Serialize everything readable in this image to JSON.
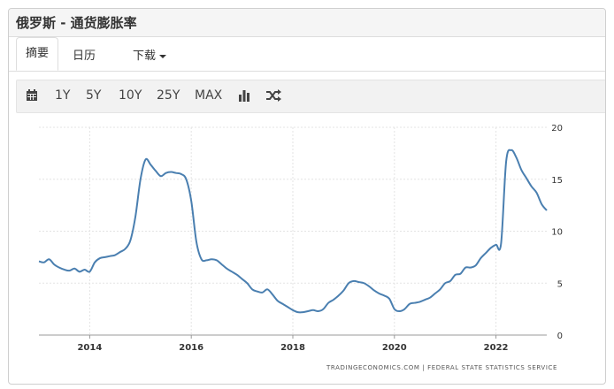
{
  "header": {
    "title": "俄罗斯 - 通货膨胀率"
  },
  "tabs": [
    {
      "label": "摘要",
      "active": true
    },
    {
      "label": "日历",
      "active": false
    },
    {
      "label": "下载",
      "dropdown": true
    }
  ],
  "toolbar": {
    "calendar_icon": "calendar-icon",
    "ranges": [
      "1Y",
      "5Y",
      "10Y",
      "25Y",
      "MAX"
    ],
    "chart_type_icon": "bar-chart-icon",
    "compare_icon": "shuffle-icon"
  },
  "chart_data": {
    "type": "line",
    "x_ticks": [
      "2014",
      "2016",
      "2018",
      "2020",
      "2022"
    ],
    "y_ticks": [
      "0",
      "5",
      "10",
      "15",
      "20"
    ],
    "ylim": [
      0,
      20
    ],
    "xlim": [
      2013.0,
      2023.0
    ],
    "grid": true,
    "y_axis_side": "right",
    "line_color": "#4a7fb0",
    "source": "TRADINGECONOMICS.COM | FEDERAL STATE STATISTICS SERVICE",
    "series": [
      {
        "x": [
          2013.0,
          2013.1,
          2013.2,
          2013.3,
          2013.4,
          2013.5,
          2013.6,
          2013.7,
          2013.8,
          2013.9,
          2014.0,
          2014.1,
          2014.2,
          2014.3,
          2014.4,
          2014.5,
          2014.6,
          2014.7,
          2014.8,
          2014.9,
          2015.0,
          2015.1,
          2015.2,
          2015.3,
          2015.4,
          2015.5,
          2015.6,
          2015.7,
          2015.8,
          2015.9,
          2016.0,
          2016.1,
          2016.2,
          2016.3,
          2016.4,
          2016.5,
          2016.6,
          2016.7,
          2016.8,
          2016.9,
          2017.0,
          2017.1,
          2017.2,
          2017.3,
          2017.4,
          2017.5,
          2017.6,
          2017.7,
          2017.8,
          2017.9,
          2018.0,
          2018.1,
          2018.2,
          2018.3,
          2018.4,
          2018.5,
          2018.6,
          2018.7,
          2018.8,
          2018.9,
          2019.0,
          2019.1,
          2019.2,
          2019.3,
          2019.4,
          2019.5,
          2019.6,
          2019.7,
          2019.8,
          2019.9,
          2020.0,
          2020.1,
          2020.2,
          2020.3,
          2020.4,
          2020.5,
          2020.6,
          2020.7,
          2020.8,
          2020.9,
          2021.0,
          2021.1,
          2021.2,
          2021.3,
          2021.4,
          2021.5,
          2021.6,
          2021.7,
          2021.8,
          2021.9,
          2022.0,
          2022.1,
          2022.2,
          2022.3,
          2022.4,
          2022.5,
          2022.6,
          2022.7,
          2022.8,
          2022.9,
          2023.0
        ],
        "values": [
          7.1,
          7.0,
          7.3,
          6.8,
          6.5,
          6.3,
          6.2,
          6.4,
          6.1,
          6.3,
          6.1,
          7.0,
          7.4,
          7.5,
          7.6,
          7.7,
          8.0,
          8.3,
          9.1,
          11.4,
          15.0,
          16.9,
          16.4,
          15.8,
          15.3,
          15.6,
          15.7,
          15.6,
          15.5,
          15.0,
          12.9,
          9.0,
          7.3,
          7.2,
          7.3,
          7.2,
          6.8,
          6.4,
          6.1,
          5.8,
          5.4,
          5.0,
          4.4,
          4.2,
          4.1,
          4.4,
          3.9,
          3.3,
          3.0,
          2.7,
          2.4,
          2.2,
          2.2,
          2.3,
          2.4,
          2.3,
          2.5,
          3.1,
          3.4,
          3.8,
          4.3,
          5.0,
          5.2,
          5.1,
          5.0,
          4.7,
          4.3,
          4.0,
          3.8,
          3.5,
          2.5,
          2.3,
          2.5,
          3.0,
          3.1,
          3.2,
          3.4,
          3.6,
          4.0,
          4.4,
          5.0,
          5.2,
          5.8,
          5.9,
          6.5,
          6.5,
          6.7,
          7.4,
          7.9,
          8.4,
          8.7,
          8.8,
          16.7,
          17.8,
          17.1,
          15.9,
          15.1,
          14.3,
          13.7,
          12.6,
          12.0
        ]
      }
    ]
  }
}
